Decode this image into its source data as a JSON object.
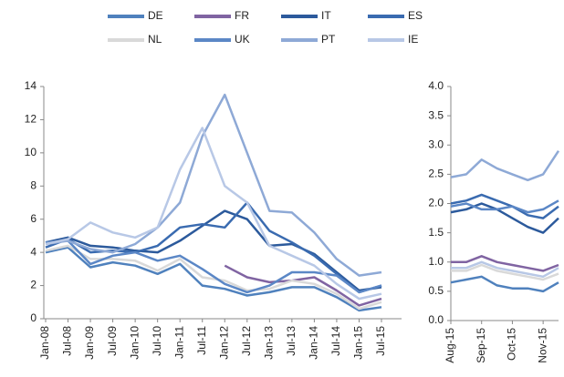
{
  "chart_data": [
    {
      "type": "line",
      "categories": [
        "Jan-08",
        "Jul-08",
        "Jan-09",
        "Jul-09",
        "Jan-10",
        "Jul-10",
        "Jan-11",
        "Jul-11",
        "Jan-12",
        "Jul-12",
        "Jan-13",
        "Jul-13",
        "Jan-14",
        "Jul-14",
        "Jan-15",
        "Jul-15"
      ],
      "ylim": [
        0,
        14
      ],
      "yticks": [
        0,
        2,
        4,
        6,
        8,
        10,
        12,
        14
      ],
      "series": [
        {
          "name": "DE",
          "color": "#4f81bd",
          "values": [
            4.0,
            4.3,
            3.1,
            3.4,
            3.2,
            2.7,
            3.3,
            2.0,
            1.8,
            1.4,
            1.6,
            1.9,
            1.9,
            1.3,
            0.5,
            0.7
          ]
        },
        {
          "name": "FR",
          "color": "#8064a2",
          "values": [
            null,
            null,
            null,
            null,
            null,
            null,
            null,
            null,
            3.2,
            2.5,
            2.2,
            2.3,
            2.5,
            1.7,
            0.8,
            1.2
          ]
        },
        {
          "name": "IT",
          "color": "#2c5a9c",
          "values": [
            4.6,
            4.9,
            4.4,
            4.3,
            4.1,
            4.0,
            4.7,
            5.6,
            6.5,
            6.0,
            4.4,
            4.5,
            3.9,
            2.8,
            1.7,
            1.9
          ]
        },
        {
          "name": "ES",
          "color": "#3a6bb0",
          "values": [
            4.3,
            4.8,
            4.0,
            4.1,
            4.0,
            4.4,
            5.5,
            5.7,
            5.5,
            7.0,
            5.3,
            4.6,
            3.8,
            2.7,
            1.6,
            2.0
          ]
        },
        {
          "name": "NL",
          "color": "#d9d9d9",
          "values": [
            4.1,
            4.4,
            3.6,
            3.6,
            3.5,
            2.9,
            3.6,
            2.5,
            2.3,
            1.7,
            1.8,
            2.3,
            2.1,
            1.5,
            0.6,
            1.0
          ]
        },
        {
          "name": "UK",
          "color": "#5b87c6",
          "values": [
            4.6,
            4.7,
            3.3,
            3.8,
            4.0,
            3.5,
            3.8,
            3.0,
            2.1,
            1.6,
            2.0,
            2.8,
            2.8,
            2.6,
            1.6,
            2.0
          ]
        },
        {
          "name": "PT",
          "color": "#8ea9d6",
          "values": [
            4.5,
            4.7,
            4.2,
            4.0,
            4.5,
            5.5,
            7.0,
            11.0,
            13.5,
            10.0,
            6.5,
            6.4,
            5.2,
            3.6,
            2.6,
            2.8
          ]
        },
        {
          "name": "IE",
          "color": "#b8c8e6",
          "values": [
            4.5,
            4.8,
            5.8,
            5.2,
            4.9,
            5.5,
            9.0,
            11.5,
            8.0,
            7.0,
            4.4,
            3.8,
            3.2,
            2.1,
            1.2,
            1.5
          ]
        }
      ]
    },
    {
      "type": "line",
      "categories": [
        "Aug-15",
        null,
        "Sep-15",
        null,
        "Oct-15",
        null,
        "Nov-15",
        null
      ],
      "ylim": [
        0,
        4
      ],
      "yticks": [
        {
          "value": 0,
          "label": "0.0"
        },
        {
          "value": 0.5,
          "label": "0.5"
        },
        {
          "value": 1,
          "label": "1.0"
        },
        {
          "value": 1.5,
          "label": "1.5"
        },
        {
          "value": 2,
          "label": "2.0"
        },
        {
          "value": 2.5,
          "label": "2.5"
        },
        {
          "value": 3,
          "label": "3.0"
        },
        {
          "value": 3.5,
          "label": "3.5"
        },
        {
          "value": 4,
          "label": "4.0"
        }
      ],
      "series": [
        {
          "color": "#4f81bd",
          "values": [
            0.65,
            0.7,
            0.75,
            0.6,
            0.55,
            0.55,
            0.5,
            0.65
          ]
        },
        {
          "color": "#8064a2",
          "values": [
            1.0,
            1.0,
            1.1,
            1.0,
            0.95,
            0.9,
            0.85,
            0.95
          ]
        },
        {
          "color": "#2c5a9c",
          "values": [
            1.85,
            1.9,
            2.0,
            1.9,
            1.75,
            1.6,
            1.5,
            1.75
          ]
        },
        {
          "color": "#3a6bb0",
          "values": [
            2.0,
            2.05,
            2.15,
            2.05,
            1.95,
            1.8,
            1.75,
            1.95
          ]
        },
        {
          "color": "#d9d9d9",
          "values": [
            0.85,
            0.85,
            0.95,
            0.85,
            0.8,
            0.75,
            0.7,
            0.8
          ]
        },
        {
          "color": "#5b87c6",
          "values": [
            1.95,
            2.0,
            1.9,
            1.9,
            1.95,
            1.85,
            1.9,
            2.05
          ]
        },
        {
          "color": "#8ea9d6",
          "values": [
            2.45,
            2.5,
            2.75,
            2.6,
            2.5,
            2.4,
            2.5,
            2.9
          ]
        },
        {
          "color": "#b8c8e6",
          "values": [
            0.9,
            0.9,
            1.0,
            0.9,
            0.85,
            0.8,
            0.75,
            0.9
          ]
        }
      ]
    }
  ]
}
